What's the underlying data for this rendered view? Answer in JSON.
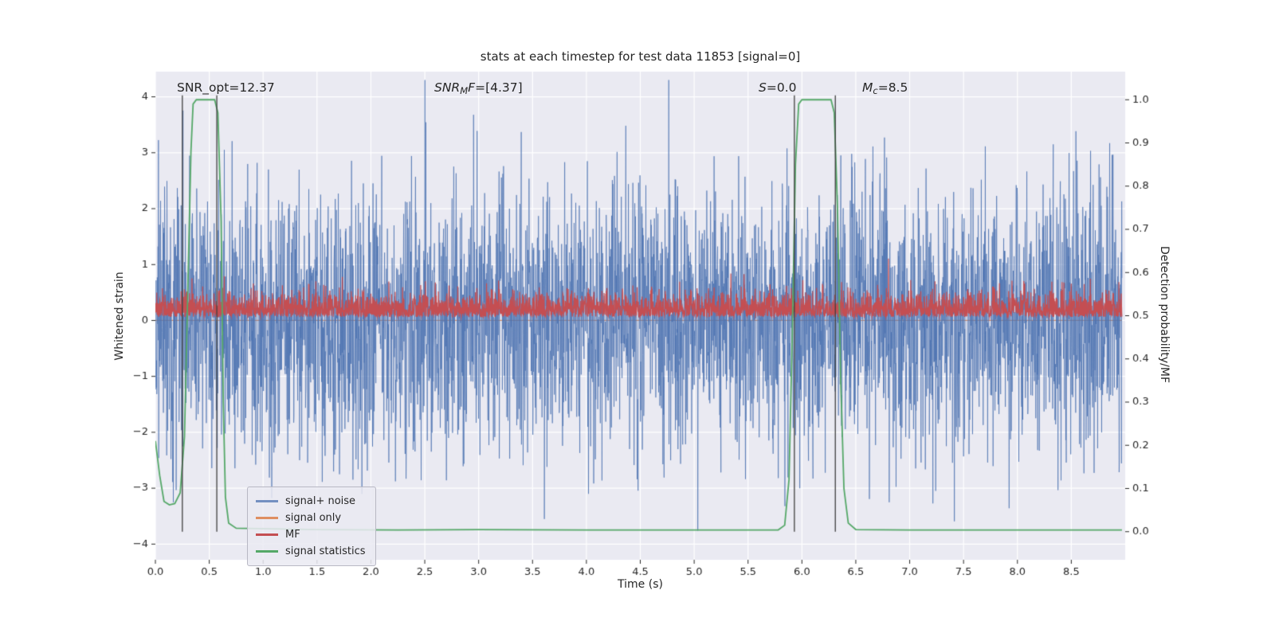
{
  "figure": {
    "title": "stats at each timestep for test data 11853 [signal=0]"
  },
  "chart_data": {
    "type": "line",
    "title": "stats at each timestep for test data 11853 [signal=0]",
    "xlabel": "Time (s)",
    "ylabel_left": "Whitened strain",
    "ylabel_right": "Detection probability/MF",
    "plot_bg": "#eaeaf2",
    "grid_color": "#ffffff",
    "tick_color": "#262626",
    "x_range": [
      0,
      9.0
    ],
    "x_ticks": [
      0,
      0.5,
      1,
      1.5,
      2,
      2.5,
      3,
      3.5,
      4,
      4.5,
      5,
      5.5,
      6,
      6.5,
      7,
      7.5,
      8,
      8.5
    ],
    "y_left_range": [
      -4.28,
      4.45
    ],
    "y_left_ticks": [
      -4,
      -3,
      -2,
      -1,
      0,
      1,
      2,
      3,
      4
    ],
    "y_right_range": [
      -0.065,
      1.065
    ],
    "y_right_ticks": [
      0,
      0.1,
      0.2,
      0.3,
      0.4,
      0.5,
      0.6,
      0.7,
      0.8,
      0.9,
      1.0
    ],
    "annotations": [
      {
        "plain": "SNR_opt=12.37"
      },
      {
        "italic_pre": "SNR",
        "subscript": "M",
        "italic_post": "F",
        "normal": "=[4.37]"
      },
      {
        "italic_pre": "S",
        "normal": "=0.0"
      },
      {
        "italic_pre": "M",
        "subscript": "c",
        "normal": "=8.5"
      }
    ],
    "vlines": {
      "axis": "right",
      "color": "#3f3f3f",
      "span": [
        0.0,
        1.01
      ],
      "times": [
        0.25,
        0.57,
        5.93,
        6.31
      ]
    },
    "series": [
      {
        "name": "signal only",
        "axis": "left",
        "color": "#dd8452",
        "alpha": 0.9,
        "width": 1.2,
        "type": "constant",
        "value": 0,
        "t_end": 8.97
      },
      {
        "name": "signal+ noise",
        "axis": "left",
        "color": "#4c72b0",
        "alpha": 0.7,
        "width": 1.0,
        "type": "noise",
        "seed": 11853,
        "n": 4096,
        "sigma": 1.15,
        "clip": 4.3,
        "t_end": 8.97
      },
      {
        "name": "MF",
        "axis": "right",
        "color": "#c44e52",
        "alpha": 1.0,
        "width": 1.2,
        "type": "mf",
        "seed": 4371,
        "n": 4096,
        "base": 0.497,
        "scale": 0.027,
        "spike_prob": 0.005,
        "spike_scale": 0.09,
        "t_end": 8.97
      },
      {
        "name": "signal statistics",
        "axis": "right",
        "color": "#55a868",
        "alpha": 1.0,
        "width": 1.8,
        "type": "points",
        "points": [
          [
            0,
            0.21
          ],
          [
            0.04,
            0.13
          ],
          [
            0.08,
            0.07
          ],
          [
            0.13,
            0.062
          ],
          [
            0.18,
            0.065
          ],
          [
            0.23,
            0.09
          ],
          [
            0.27,
            0.22
          ],
          [
            0.3,
            0.55
          ],
          [
            0.33,
            0.88
          ],
          [
            0.35,
            0.99
          ],
          [
            0.38,
            1.0
          ],
          [
            0.55,
            1.0
          ],
          [
            0.58,
            0.97
          ],
          [
            0.61,
            0.72
          ],
          [
            0.63,
            0.3
          ],
          [
            0.65,
            0.08
          ],
          [
            0.68,
            0.02
          ],
          [
            0.75,
            0.008
          ],
          [
            1.5,
            0.005
          ],
          [
            2.25,
            0.004
          ],
          [
            3.0,
            0.005
          ],
          [
            4.0,
            0.004
          ],
          [
            5.0,
            0.004
          ],
          [
            5.78,
            0.004
          ],
          [
            5.84,
            0.015
          ],
          [
            5.88,
            0.12
          ],
          [
            5.91,
            0.45
          ],
          [
            5.94,
            0.85
          ],
          [
            5.97,
            0.99
          ],
          [
            6.0,
            1.0
          ],
          [
            6.27,
            1.0
          ],
          [
            6.3,
            0.97
          ],
          [
            6.33,
            0.75
          ],
          [
            6.36,
            0.35
          ],
          [
            6.39,
            0.1
          ],
          [
            6.43,
            0.02
          ],
          [
            6.5,
            0.005
          ],
          [
            7.0,
            0.004
          ],
          [
            8.0,
            0.004
          ],
          [
            8.97,
            0.004
          ]
        ]
      }
    ],
    "legend": {
      "items": [
        {
          "label": "signal+ noise",
          "color": "#4c72b0",
          "alpha": 0.75
        },
        {
          "label": "signal only",
          "color": "#dd8452",
          "alpha": 0.9
        },
        {
          "label": "MF",
          "color": "#c44e52",
          "alpha": 1.0
        },
        {
          "label": "signal statistics",
          "color": "#55a868",
          "alpha": 1.0
        }
      ]
    }
  }
}
